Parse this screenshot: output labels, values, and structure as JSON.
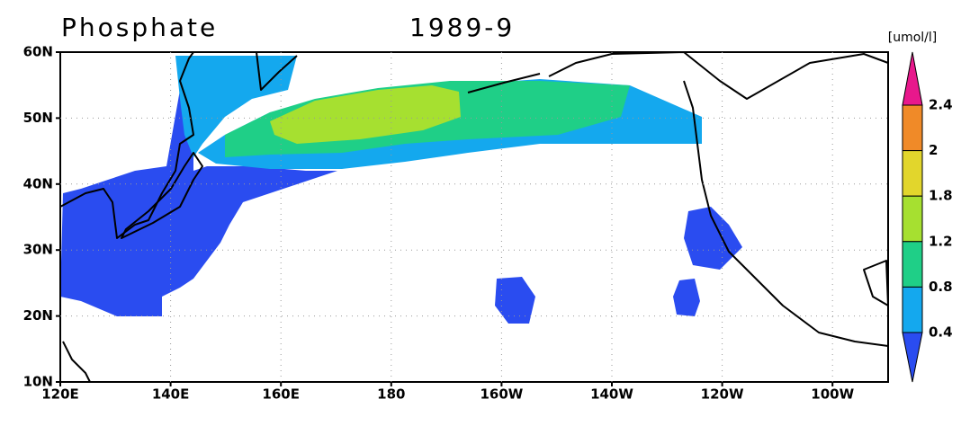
{
  "title": "Phosphate",
  "period": "1989-9",
  "units": "[umol/l]",
  "lat_labels": [
    "60N",
    "50N",
    "40N",
    "30N",
    "20N",
    "10N"
  ],
  "lon_labels": [
    "120E",
    "140E",
    "160E",
    "180",
    "160W",
    "140W",
    "120W",
    "100W"
  ],
  "colorbar": {
    "labels": [
      "2.4",
      "2",
      "1.8",
      "1.2",
      "0.8",
      "0.4"
    ],
    "colors": [
      "#e8188c",
      "#f08a28",
      "#e2d62c",
      "#a6e030",
      "#1fcf87",
      "#14a8ee",
      "#2a4cf0"
    ]
  }
}
